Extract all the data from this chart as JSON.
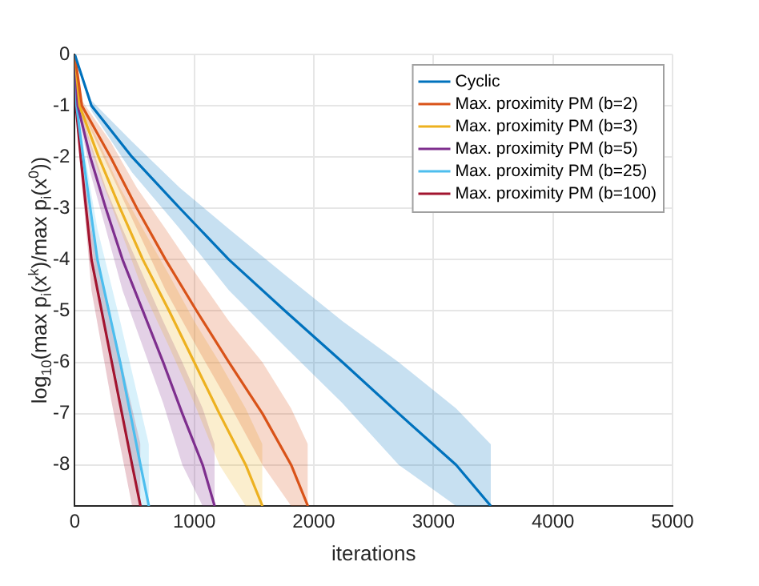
{
  "chart_data": {
    "type": "line",
    "xlabel": "iterations",
    "ylabel": "log$_{10}$(max p$_{i}$(x$^{k}$)/max p$_{i}$(x$^{0}$))",
    "xlim": [
      0,
      5000
    ],
    "xticks": [
      0,
      1000,
      2000,
      3000,
      4000,
      5000
    ],
    "ylim": [
      -8.8,
      0
    ],
    "yticks": [
      -8,
      -7,
      -6,
      -5,
      -4,
      -3,
      -2,
      -1,
      0
    ],
    "grid": true,
    "legend": "top right",
    "marker": "none",
    "line_style": "solid",
    "series": [
      {
        "name": "Cyclic",
        "color": "#0072bd",
        "x": [
          0,
          140,
          480,
          880,
          1290,
          1760,
          2240,
          2710,
          3190,
          3480
        ],
        "values": [
          0,
          -1,
          -2,
          -3,
          -4,
          -5,
          -6,
          -7,
          -8,
          -8.8
        ],
        "upper": [
          0,
          -0.9,
          -1.7,
          -2.6,
          -3.4,
          -4.3,
          -5.2,
          -6,
          -6.9,
          -7.6
        ],
        "lower": [
          0,
          -1.1,
          -2.3,
          -3.4,
          -4.6,
          -5.7,
          -6.8,
          -8,
          -8.8,
          -8.8
        ]
      },
      {
        "name": "Max. proximity PM (b=2)",
        "color": "#d95319",
        "x": [
          0,
          60,
          300,
          520,
          760,
          1020,
          1290,
          1570,
          1810,
          1950
        ],
        "values": [
          0,
          -1,
          -2,
          -3,
          -4,
          -5,
          -6,
          -7,
          -8,
          -8.8
        ],
        "upper": [
          0,
          -0.9,
          -1.7,
          -2.6,
          -3.4,
          -4.3,
          -5.2,
          -6,
          -6.9,
          -7.6
        ],
        "lower": [
          0,
          -1.1,
          -2.3,
          -3.4,
          -4.6,
          -5.7,
          -6.8,
          -8,
          -8.8,
          -8.8
        ]
      },
      {
        "name": "Max. proximity PM (b=3)",
        "color": "#edb120",
        "x": [
          0,
          40,
          200,
          380,
          570,
          790,
          1000,
          1210,
          1430,
          1570
        ],
        "values": [
          0,
          -1,
          -2,
          -3,
          -4,
          -5,
          -6,
          -7,
          -8,
          -8.8
        ],
        "upper": [
          0,
          -0.9,
          -1.7,
          -2.6,
          -3.4,
          -4.3,
          -5.2,
          -6,
          -6.9,
          -7.6
        ],
        "lower": [
          0,
          -1.1,
          -2.3,
          -3.4,
          -4.6,
          -5.7,
          -6.8,
          -8,
          -8.8,
          -8.8
        ]
      },
      {
        "name": "Max. proximity PM (b=5)",
        "color": "#7e2f8e",
        "x": [
          0,
          25,
          130,
          260,
          400,
          570,
          740,
          900,
          1070,
          1170
        ],
        "values": [
          0,
          -1,
          -2,
          -3,
          -4,
          -5,
          -6,
          -7,
          -8,
          -8.8
        ],
        "upper": [
          0,
          -0.9,
          -1.7,
          -2.6,
          -3.4,
          -4.3,
          -5.2,
          -6,
          -6.9,
          -7.6
        ],
        "lower": [
          0,
          -1.1,
          -2.3,
          -3.4,
          -4.6,
          -5.7,
          -6.8,
          -8,
          -8.8,
          -8.8
        ]
      },
      {
        "name": "Max. proximity PM (b=25)",
        "color": "#4dbeee",
        "x": [
          0,
          15,
          70,
          130,
          190,
          380,
          550,
          620
        ],
        "values": [
          0,
          -1,
          -2,
          -3,
          -4,
          -6,
          -8,
          -8.8
        ],
        "upper": [
          0,
          -0.9,
          -1.7,
          -2.6,
          -3.4,
          -5.2,
          -6.9,
          -7.6
        ],
        "lower": [
          0,
          -1.1,
          -2.3,
          -3.4,
          -4.6,
          -6.8,
          -8.8,
          -8.8
        ]
      },
      {
        "name": "Max. proximity PM (b=100)",
        "color": "#a2142f",
        "x": [
          0,
          10,
          50,
          95,
          140,
          310,
          480,
          550
        ],
        "values": [
          0,
          -1,
          -2,
          -3,
          -4,
          -6,
          -8,
          -8.8
        ],
        "upper": [
          0,
          -0.9,
          -1.7,
          -2.6,
          -3.4,
          -5.2,
          -6.9,
          -7.6
        ],
        "lower": [
          0,
          -1.1,
          -2.3,
          -3.4,
          -4.6,
          -6.8,
          -8.8,
          -8.8
        ]
      }
    ]
  }
}
